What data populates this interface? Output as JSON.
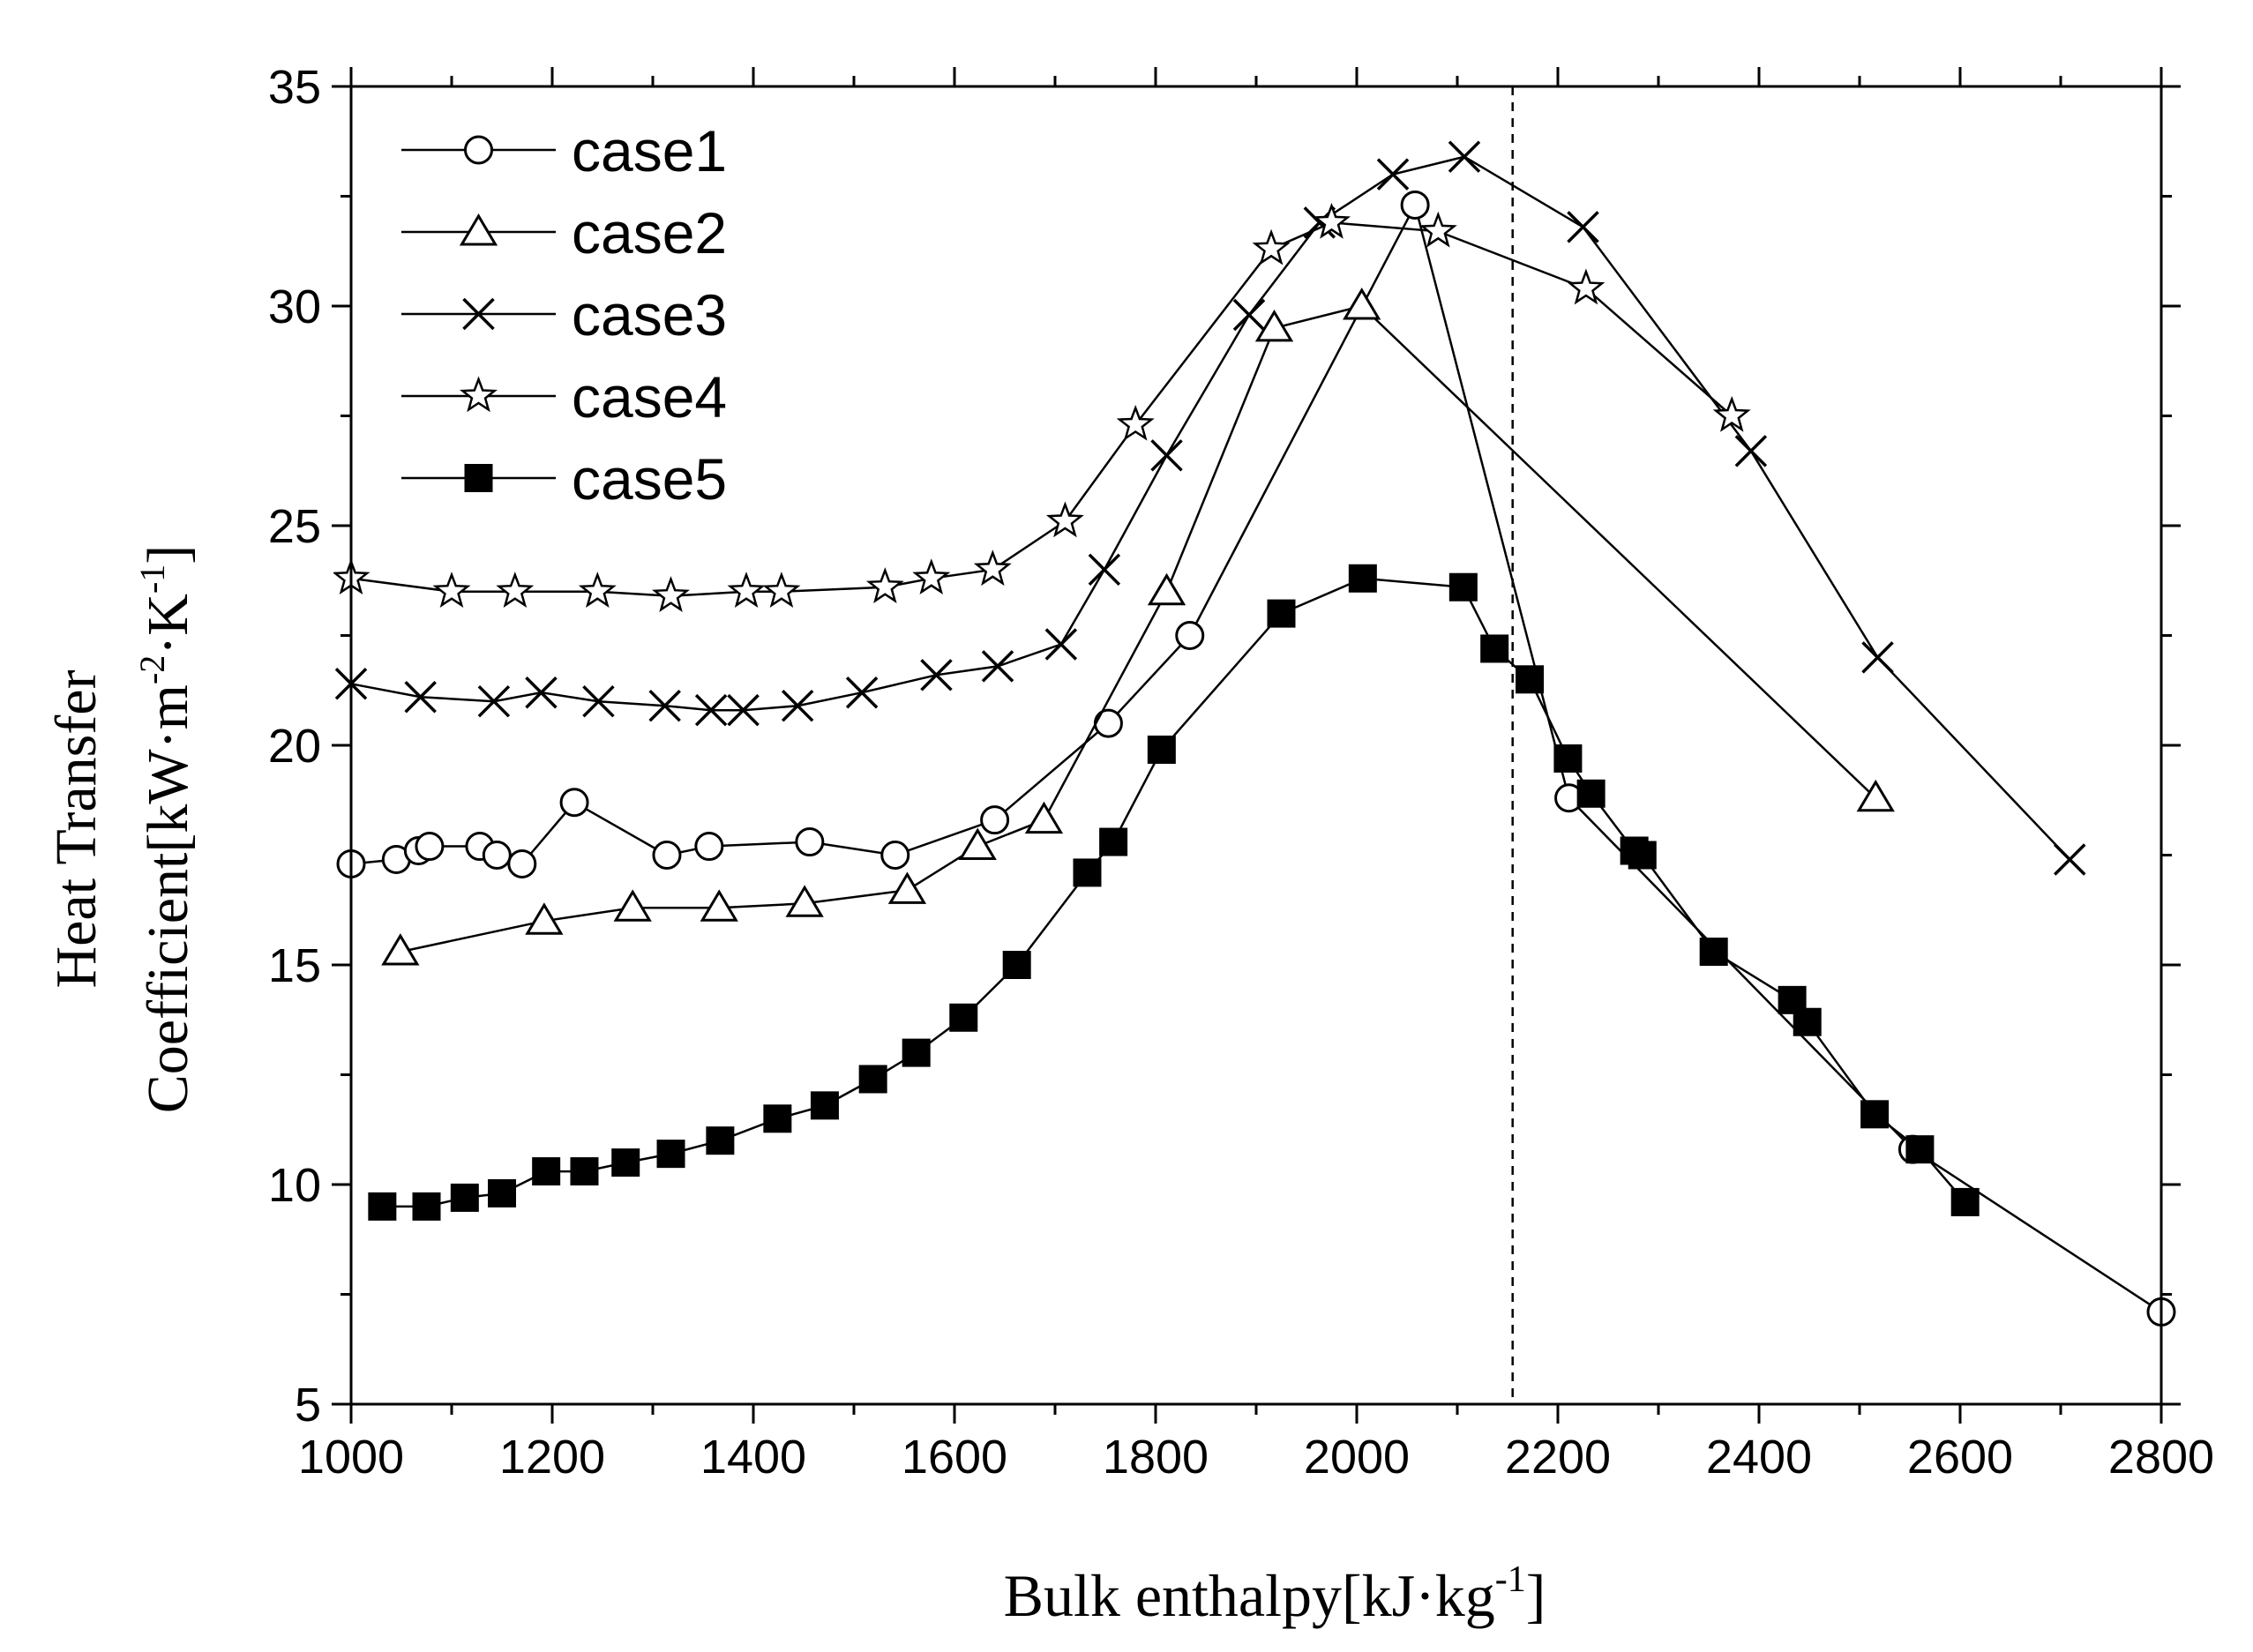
{
  "chart_data": {
    "type": "line",
    "title": "",
    "xlabel_main": "Bulk enthalpy[kJ·kg",
    "xlabel_sup": "-1",
    "xlabel_end": "]",
    "ylabel_line1": "Heat Transfer",
    "ylabel_line2_main": "Coefficient[kW·m",
    "ylabel_line2_sup1": "-2",
    "ylabel_line2_mid": "·K",
    "ylabel_line2_sup2": "-1",
    "ylabel_line2_end": "]",
    "xlim": [
      1000,
      2800
    ],
    "ylim": [
      5,
      35
    ],
    "xticks": [
      1000,
      1200,
      1400,
      1600,
      1800,
      2000,
      2200,
      2400,
      2600,
      2800
    ],
    "yticks": [
      5,
      10,
      15,
      20,
      25,
      30,
      35
    ],
    "vline_x": 2155,
    "legend_position": "top-left",
    "series": [
      {
        "name": "case1",
        "marker": "circle",
        "x": [
          1000,
          1045,
          1067,
          1078,
          1128,
          1145,
          1170,
          1222,
          1314,
          1356,
          1456,
          1541,
          1640,
          1753,
          1834,
          2058,
          2211,
          2553,
          2800
        ],
        "y": [
          17.3,
          17.4,
          17.6,
          17.7,
          17.7,
          17.5,
          17.3,
          18.7,
          17.5,
          17.7,
          17.8,
          17.5,
          18.3,
          20.5,
          22.5,
          32.3,
          18.8,
          10.8,
          7.1
        ]
      },
      {
        "name": "case2",
        "marker": "triangle",
        "x": [
          1049,
          1192,
          1280,
          1366,
          1451,
          1553,
          1623,
          1689,
          1811,
          1918,
          2005,
          2516
        ],
        "y": [
          15.3,
          16.0,
          16.3,
          16.3,
          16.4,
          16.7,
          17.7,
          18.3,
          23.5,
          29.5,
          30.0,
          18.8
        ]
      },
      {
        "name": "case3",
        "marker": "x",
        "x": [
          1000,
          1069,
          1142,
          1189,
          1246,
          1312,
          1358,
          1390,
          1444,
          1508,
          1582,
          1643,
          1706,
          1749,
          1811,
          1893,
          1963,
          2036,
          2107,
          2225,
          2392,
          2518,
          2709
        ],
        "y": [
          21.4,
          21.1,
          21.0,
          21.2,
          21.0,
          20.9,
          20.8,
          20.8,
          20.9,
          21.2,
          21.6,
          21.8,
          22.3,
          24.0,
          26.6,
          29.8,
          31.9,
          33.0,
          33.4,
          31.8,
          26.7,
          22.0,
          17.4
        ]
      },
      {
        "name": "case4",
        "marker": "star",
        "x": [
          1000,
          1100,
          1163,
          1245,
          1318,
          1393,
          1428,
          1531,
          1577,
          1638,
          1710,
          1780,
          1915,
          1975,
          2081,
          2228,
          2373
        ],
        "y": [
          23.8,
          23.5,
          23.5,
          23.5,
          23.4,
          23.5,
          23.5,
          23.6,
          23.8,
          24.0,
          25.1,
          27.3,
          31.3,
          31.9,
          31.7,
          30.4,
          27.5
        ]
      },
      {
        "name": "case5",
        "marker": "square",
        "x": [
          1031,
          1075,
          1113,
          1150,
          1194,
          1232,
          1273,
          1318,
          1367,
          1424,
          1471,
          1519,
          1562,
          1609,
          1662,
          1732,
          1758,
          1806,
          1925,
          2006,
          2106,
          2137,
          2172,
          2210,
          2233,
          2276,
          2284,
          2355,
          2433,
          2448,
          2515,
          2560,
          2605
        ],
        "y": [
          9.5,
          9.5,
          9.7,
          9.8,
          10.3,
          10.3,
          10.5,
          10.7,
          11.0,
          11.5,
          11.8,
          12.4,
          13.0,
          13.8,
          15.0,
          17.1,
          17.8,
          19.9,
          23.0,
          23.8,
          23.6,
          22.2,
          21.5,
          19.7,
          18.9,
          17.6,
          17.5,
          15.3,
          14.2,
          13.7,
          11.6,
          10.8,
          9.6
        ]
      }
    ]
  }
}
